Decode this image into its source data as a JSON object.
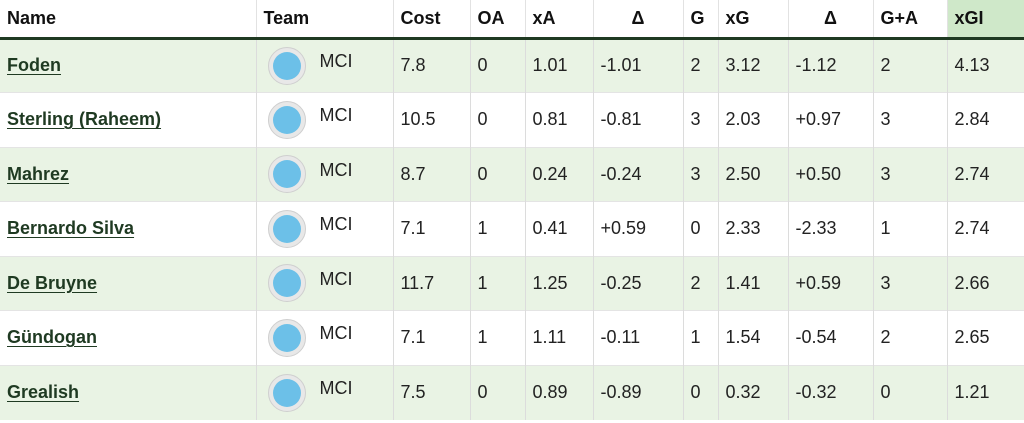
{
  "headers": {
    "name": "Name",
    "team": "Team",
    "cost": "Cost",
    "oa": "OA",
    "xa": "xA",
    "delta_a": "Δ",
    "g": "G",
    "xg": "xG",
    "delta_g": "Δ",
    "ga": "G+A",
    "xgi": "xGI"
  },
  "colors": {
    "header_rule": "#1f3a22",
    "xgi_header_bg": "#cfe8c9",
    "alt_row_bg": "#e9f3e4",
    "badge_fill": "#6cc0e8"
  },
  "rows": [
    {
      "name": "Foden",
      "team": "MCI",
      "cost": "7.8",
      "oa": "0",
      "xa": "1.01",
      "delta_a": "-1.01",
      "g": "2",
      "xg": "3.12",
      "delta_g": "-1.12",
      "ga": "2",
      "xgi": "4.13"
    },
    {
      "name": "Sterling (Raheem)",
      "team": "MCI",
      "cost": "10.5",
      "oa": "0",
      "xa": "0.81",
      "delta_a": "-0.81",
      "g": "3",
      "xg": "2.03",
      "delta_g": "+0.97",
      "ga": "3",
      "xgi": "2.84"
    },
    {
      "name": "Mahrez",
      "team": "MCI",
      "cost": "8.7",
      "oa": "0",
      "xa": "0.24",
      "delta_a": "-0.24",
      "g": "3",
      "xg": "2.50",
      "delta_g": "+0.50",
      "ga": "3",
      "xgi": "2.74"
    },
    {
      "name": "Bernardo Silva",
      "team": "MCI",
      "cost": "7.1",
      "oa": "1",
      "xa": "0.41",
      "delta_a": "+0.59",
      "g": "0",
      "xg": "2.33",
      "delta_g": "-2.33",
      "ga": "1",
      "xgi": "2.74"
    },
    {
      "name": "De Bruyne",
      "team": "MCI",
      "cost": "11.7",
      "oa": "1",
      "xa": "1.25",
      "delta_a": "-0.25",
      "g": "2",
      "xg": "1.41",
      "delta_g": "+0.59",
      "ga": "3",
      "xgi": "2.66"
    },
    {
      "name": "Gündogan",
      "team": "MCI",
      "cost": "7.1",
      "oa": "1",
      "xa": "1.11",
      "delta_a": "-0.11",
      "g": "1",
      "xg": "1.54",
      "delta_g": "-0.54",
      "ga": "2",
      "xgi": "2.65"
    },
    {
      "name": "Grealish",
      "team": "MCI",
      "cost": "7.5",
      "oa": "0",
      "xa": "0.89",
      "delta_a": "-0.89",
      "g": "0",
      "xg": "0.32",
      "delta_g": "-0.32",
      "ga": "0",
      "xgi": "1.21"
    }
  ]
}
